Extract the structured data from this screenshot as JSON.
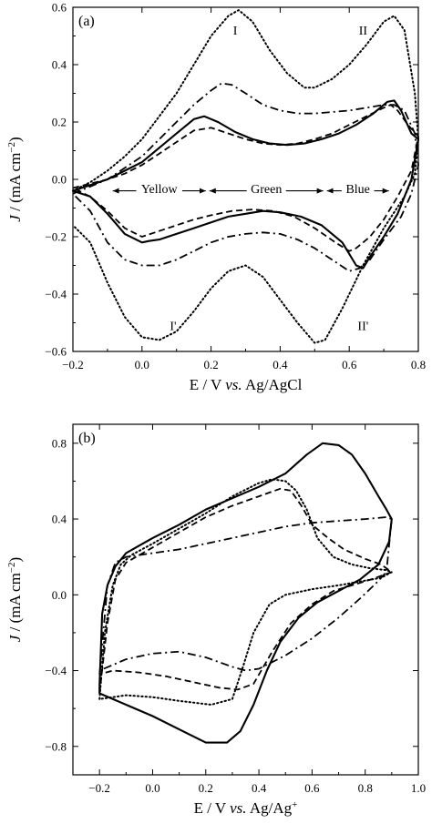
{
  "chart_data": [
    {
      "type": "line",
      "panel_label": "(a)",
      "xlabel": {
        "prefix": "E / V ",
        "italic": "vs.",
        "suffix": " Ag/AgCl"
      },
      "ylabel": {
        "italic": "J",
        "suffix": " / (mA cm",
        "sup": "−2",
        "close": ")"
      },
      "xlim": [
        -0.2,
        0.8
      ],
      "ylim": [
        -0.6,
        0.6
      ],
      "xticks": [
        -0.2,
        0.0,
        0.2,
        0.4,
        0.6,
        0.8
      ],
      "xtick_labels": [
        "−0.2",
        "0.0",
        "0.2",
        "0.4",
        "0.6",
        "0.8"
      ],
      "yticks": [
        -0.6,
        -0.4,
        -0.2,
        0.0,
        0.2,
        0.4,
        0.6
      ],
      "ytick_labels": [
        "−0.6",
        "−0.4",
        "−0.2",
        "0.0",
        "0.2",
        "0.4",
        "0.6"
      ],
      "annotations": [
        {
          "text": "I",
          "x": 0.27,
          "y": 0.52
        },
        {
          "text": "II",
          "x": 0.64,
          "y": 0.52
        },
        {
          "text": "I'",
          "x": 0.09,
          "y": -0.51
        },
        {
          "text": "II'",
          "x": 0.64,
          "y": -0.51
        }
      ],
      "color_regions": [
        {
          "text": "Yellow",
          "x_start": -0.09,
          "x_end": 0.19,
          "y": -0.04
        },
        {
          "text": "Green",
          "x_start": 0.19,
          "x_end": 0.53,
          "y": -0.04
        },
        {
          "text": "Blue",
          "x_start": 0.53,
          "x_end": 0.72,
          "y": -0.04
        }
      ],
      "series": [
        {
          "style": "dotted",
          "x": [
            -0.2,
            -0.15,
            -0.1,
            -0.05,
            0.0,
            0.05,
            0.1,
            0.15,
            0.2,
            0.25,
            0.28,
            0.32,
            0.37,
            0.42,
            0.47,
            0.5,
            0.55,
            0.6,
            0.65,
            0.7,
            0.73,
            0.76,
            0.79,
            0.8,
            0.79,
            0.76,
            0.7,
            0.64,
            0.58,
            0.53,
            0.5,
            0.45,
            0.4,
            0.35,
            0.3,
            0.25,
            0.2,
            0.15,
            0.1,
            0.05,
            0.0,
            -0.05,
            -0.1,
            -0.15,
            -0.2
          ],
          "y": [
            -0.04,
            -0.01,
            0.03,
            0.08,
            0.14,
            0.22,
            0.3,
            0.4,
            0.5,
            0.57,
            0.59,
            0.55,
            0.45,
            0.37,
            0.32,
            0.32,
            0.35,
            0.4,
            0.47,
            0.55,
            0.57,
            0.52,
            0.3,
            0.14,
            0.02,
            -0.06,
            -0.17,
            -0.3,
            -0.45,
            -0.56,
            -0.57,
            -0.5,
            -0.42,
            -0.34,
            -0.3,
            -0.32,
            -0.38,
            -0.46,
            -0.53,
            -0.56,
            -0.55,
            -0.48,
            -0.36,
            -0.22,
            -0.16
          ]
        },
        {
          "style": "dashdot",
          "x": [
            -0.2,
            -0.1,
            -0.05,
            0.0,
            0.05,
            0.1,
            0.15,
            0.2,
            0.23,
            0.26,
            0.3,
            0.35,
            0.4,
            0.45,
            0.5,
            0.55,
            0.6,
            0.65,
            0.7,
            0.73,
            0.76,
            0.79,
            0.8,
            0.78,
            0.75,
            0.7,
            0.66,
            0.63,
            0.6,
            0.55,
            0.5,
            0.45,
            0.4,
            0.35,
            0.3,
            0.25,
            0.2,
            0.15,
            0.1,
            0.05,
            0.0,
            -0.05,
            -0.1,
            -0.15,
            -0.2
          ],
          "y": [
            -0.05,
            0.0,
            0.04,
            0.08,
            0.14,
            0.2,
            0.26,
            0.31,
            0.335,
            0.33,
            0.3,
            0.26,
            0.24,
            0.23,
            0.23,
            0.235,
            0.24,
            0.25,
            0.26,
            0.26,
            0.24,
            0.16,
            0.05,
            -0.05,
            -0.13,
            -0.21,
            -0.28,
            -0.31,
            -0.32,
            -0.28,
            -0.24,
            -0.21,
            -0.19,
            -0.185,
            -0.19,
            -0.2,
            -0.22,
            -0.25,
            -0.28,
            -0.3,
            -0.3,
            -0.28,
            -0.22,
            -0.11,
            -0.05
          ]
        },
        {
          "style": "solid",
          "x": [
            -0.2,
            -0.1,
            -0.05,
            0.0,
            0.05,
            0.1,
            0.15,
            0.18,
            0.22,
            0.27,
            0.32,
            0.37,
            0.42,
            0.47,
            0.52,
            0.57,
            0.62,
            0.67,
            0.71,
            0.73,
            0.75,
            0.78,
            0.8,
            0.78,
            0.74,
            0.7,
            0.66,
            0.64,
            0.62,
            0.58,
            0.52,
            0.46,
            0.4,
            0.35,
            0.3,
            0.25,
            0.2,
            0.15,
            0.1,
            0.05,
            0.02,
            0.0,
            -0.05,
            -0.1,
            -0.15,
            -0.2
          ],
          "y": [
            -0.04,
            0.0,
            0.03,
            0.06,
            0.11,
            0.16,
            0.21,
            0.22,
            0.2,
            0.165,
            0.14,
            0.125,
            0.12,
            0.125,
            0.14,
            0.16,
            0.19,
            0.23,
            0.27,
            0.275,
            0.24,
            0.16,
            0.14,
            0.0,
            -0.12,
            -0.2,
            -0.27,
            -0.31,
            -0.3,
            -0.22,
            -0.16,
            -0.13,
            -0.115,
            -0.11,
            -0.12,
            -0.13,
            -0.15,
            -0.17,
            -0.19,
            -0.21,
            -0.215,
            -0.22,
            -0.19,
            -0.12,
            -0.06,
            -0.04
          ]
        },
        {
          "style": "dashed",
          "x": [
            -0.2,
            -0.1,
            -0.05,
            0.0,
            0.05,
            0.1,
            0.15,
            0.2,
            0.25,
            0.3,
            0.35,
            0.4,
            0.45,
            0.5,
            0.55,
            0.6,
            0.65,
            0.7,
            0.72,
            0.74,
            0.77,
            0.8,
            0.78,
            0.74,
            0.7,
            0.66,
            0.62,
            0.6,
            0.56,
            0.5,
            0.44,
            0.38,
            0.32,
            0.26,
            0.2,
            0.15,
            0.1,
            0.05,
            0.0,
            -0.05,
            -0.1,
            -0.15,
            -0.2
          ],
          "y": [
            -0.03,
            0.0,
            0.02,
            0.05,
            0.09,
            0.13,
            0.17,
            0.18,
            0.16,
            0.14,
            0.125,
            0.12,
            0.125,
            0.14,
            0.16,
            0.19,
            0.22,
            0.25,
            0.26,
            0.24,
            0.19,
            0.15,
            0.03,
            -0.06,
            -0.14,
            -0.2,
            -0.24,
            -0.25,
            -0.22,
            -0.17,
            -0.13,
            -0.11,
            -0.105,
            -0.11,
            -0.125,
            -0.14,
            -0.16,
            -0.18,
            -0.2,
            -0.17,
            -0.11,
            -0.06,
            -0.03
          ]
        }
      ]
    },
    {
      "type": "line",
      "panel_label": "(b)",
      "xlabel": {
        "prefix": "E / V ",
        "italic": "vs.",
        "suffix": " Ag/Ag",
        "sup": "+"
      },
      "ylabel": {
        "italic": "J",
        "suffix": " / (mA cm",
        "sup": "−2",
        "close": ")"
      },
      "xlim": [
        -0.3,
        1.0
      ],
      "ylim": [
        -0.95,
        0.9
      ],
      "xticks": [
        -0.2,
        0.0,
        0.2,
        0.4,
        0.6,
        0.8,
        1.0
      ],
      "xtick_labels": [
        "−0.2",
        "0.0",
        "0.2",
        "0.4",
        "0.6",
        "0.8",
        "1.0"
      ],
      "yticks": [
        -0.8,
        -0.4,
        0.0,
        0.4,
        0.8
      ],
      "ytick_labels": [
        "−0.8",
        "−0.4",
        "0.0",
        "0.4",
        "0.8"
      ],
      "annotations": [],
      "color_regions": [],
      "series": [
        {
          "style": "solid",
          "x": [
            -0.2,
            -0.19,
            -0.17,
            -0.14,
            -0.1,
            -0.05,
            0.0,
            0.1,
            0.2,
            0.3,
            0.4,
            0.5,
            0.58,
            0.64,
            0.7,
            0.75,
            0.8,
            0.85,
            0.88,
            0.9,
            0.89,
            0.85,
            0.78,
            0.7,
            0.62,
            0.55,
            0.48,
            0.43,
            0.38,
            0.33,
            0.28,
            0.2,
            0.1,
            0.0,
            -0.1,
            -0.2,
            -0.2
          ],
          "y": [
            -0.48,
            -0.1,
            0.05,
            0.15,
            0.22,
            0.26,
            0.3,
            0.37,
            0.45,
            0.51,
            0.57,
            0.64,
            0.74,
            0.8,
            0.79,
            0.74,
            0.64,
            0.52,
            0.45,
            0.4,
            0.28,
            0.16,
            0.08,
            0.02,
            -0.04,
            -0.12,
            -0.25,
            -0.4,
            -0.58,
            -0.72,
            -0.78,
            -0.78,
            -0.71,
            -0.64,
            -0.58,
            -0.52,
            -0.48
          ]
        },
        {
          "style": "dotted",
          "x": [
            -0.2,
            -0.18,
            -0.15,
            -0.12,
            -0.08,
            0.0,
            0.1,
            0.2,
            0.3,
            0.4,
            0.45,
            0.5,
            0.54,
            0.58,
            0.62,
            0.68,
            0.75,
            0.82,
            0.88,
            0.9,
            0.86,
            0.78,
            0.7,
            0.6,
            0.5,
            0.44,
            0.38,
            0.34,
            0.3,
            0.22,
            0.1,
            0.0,
            -0.1,
            -0.2,
            -0.2
          ],
          "y": [
            -0.55,
            -0.2,
            0.05,
            0.16,
            0.21,
            0.27,
            0.35,
            0.43,
            0.52,
            0.59,
            0.61,
            0.6,
            0.55,
            0.45,
            0.3,
            0.2,
            0.16,
            0.14,
            0.13,
            0.12,
            0.09,
            0.07,
            0.05,
            0.03,
            0.0,
            -0.05,
            -0.2,
            -0.38,
            -0.55,
            -0.58,
            -0.56,
            -0.54,
            -0.53,
            -0.55,
            -0.55
          ]
        },
        {
          "style": "dashed",
          "x": [
            -0.2,
            -0.17,
            -0.14,
            -0.1,
            -0.05,
            0.0,
            0.1,
            0.2,
            0.3,
            0.4,
            0.48,
            0.52,
            0.56,
            0.6,
            0.66,
            0.72,
            0.8,
            0.86,
            0.9,
            0.88,
            0.82,
            0.75,
            0.68,
            0.6,
            0.52,
            0.45,
            0.38,
            0.32,
            0.25,
            0.15,
            0.05,
            -0.05,
            -0.15,
            -0.2
          ],
          "y": [
            -0.52,
            -0.15,
            0.08,
            0.17,
            0.21,
            0.25,
            0.33,
            0.41,
            0.47,
            0.52,
            0.56,
            0.55,
            0.47,
            0.37,
            0.3,
            0.24,
            0.19,
            0.16,
            0.12,
            0.11,
            0.08,
            0.05,
            0.02,
            -0.05,
            -0.15,
            -0.3,
            -0.47,
            -0.5,
            -0.49,
            -0.46,
            -0.43,
            -0.41,
            -0.4,
            -0.42
          ]
        },
        {
          "style": "dashdot",
          "x": [
            -0.2,
            -0.17,
            -0.14,
            -0.1,
            0.0,
            0.1,
            0.2,
            0.3,
            0.4,
            0.5,
            0.6,
            0.7,
            0.8,
            0.88,
            0.9,
            0.88,
            0.84,
            0.78,
            0.7,
            0.6,
            0.5,
            0.4,
            0.35,
            0.3,
            0.2,
            0.1,
            0.0,
            -0.1,
            -0.2
          ],
          "y": [
            -0.42,
            0.05,
            0.17,
            0.2,
            0.22,
            0.24,
            0.27,
            0.3,
            0.33,
            0.36,
            0.38,
            0.39,
            0.4,
            0.41,
            0.4,
            0.12,
            0.06,
            -0.02,
            -0.12,
            -0.23,
            -0.32,
            -0.39,
            -0.4,
            -0.38,
            -0.33,
            -0.3,
            -0.31,
            -0.34,
            -0.4
          ]
        }
      ]
    }
  ]
}
